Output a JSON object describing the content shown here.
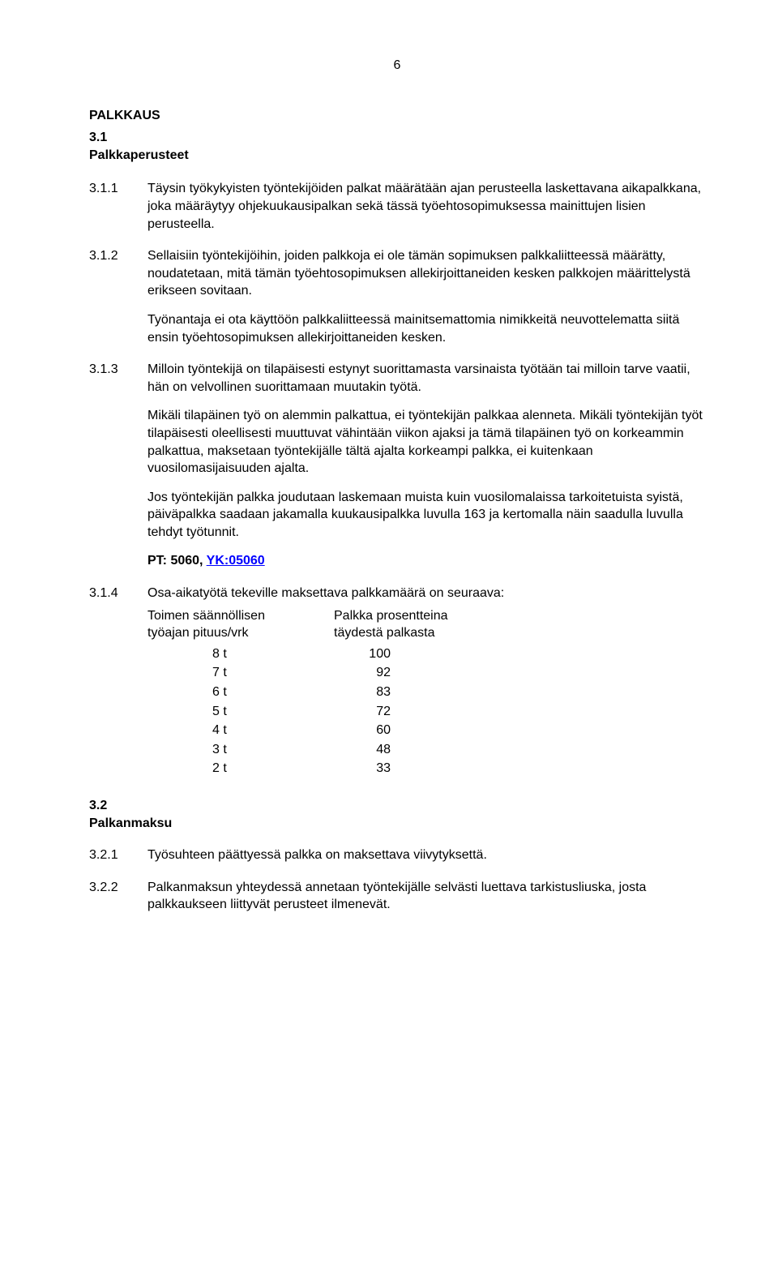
{
  "page_number": "6",
  "heading_main": "PALKKAUS",
  "heading_sub_num": "3.1",
  "heading_sub_label": "Palkkaperusteet",
  "clauses": {
    "c311_num": "3.1.1",
    "c311_text": "Täysin työkykyisten työntekijöiden palkat määrätään ajan perusteella laskettavana aikapalkkana, joka määräytyy ohjekuukausipalkan sekä tässä työehtosopimuksessa mainittujen lisien perusteella.",
    "c312_num": "3.1.2",
    "c312_p1": "Sellaisiin työntekijöihin, joiden palkkoja ei ole tämän sopimuksen palkkaliitteessä määrätty, noudatetaan, mitä tämän työehtosopimuksen allekirjoittaneiden kesken palkkojen määrittelystä erikseen sovitaan.",
    "c312_p2": "Työnantaja ei ota käyttöön palkkaliitteessä mainitsemattomia nimikkeitä neuvottelematta siitä ensin työehtosopimuksen allekirjoittaneiden kesken.",
    "c313_num": "3.1.3",
    "c313_p1": "Milloin työntekijä on tilapäisesti estynyt suorittamasta varsinaista työtään tai milloin tarve vaatii, hän on velvollinen suorittamaan muutakin työtä.",
    "c313_p2": "Mikäli tilapäinen työ on alemmin palkattua, ei työntekijän palkkaa alenneta. Mikäli työntekijän työt tilapäisesti oleellisesti muuttuvat vähintään viikon ajaksi ja tämä tilapäinen työ on korkeammin palkattua, maksetaan työntekijälle tältä ajalta korkeampi palkka, ei kuitenkaan vuosilomаsijaisuuden ajalta.",
    "c313_p3": "Jos työntekijän palkka joudutaan laskemaan muista kuin vuosilomalaissa tarkoitetuista syistä, päiväpalkka saadaan jakamalla kuukausipalkka luvulla 163 ja kertomalla näin saadulla luvulla tehdyt työtunnit.",
    "pt_label": "PT: 5060, ",
    "yk_label": "YK:05060",
    "c314_num": "3.1.4",
    "c314_intro": "Osa-aikatyötä tekeville maksettava palkkamäärä on seuraava:",
    "table_head_col1_l1": "Toimen säännöllisen",
    "table_head_col1_l2": "työajan pituus/vrk",
    "table_head_col2_l1": "Palkka prosentteina",
    "table_head_col2_l2": "täydestä palkasta",
    "rows": [
      {
        "h": "8 t",
        "p": "100"
      },
      {
        "h": "7 t",
        "p": "92"
      },
      {
        "h": "6 t",
        "p": "83"
      },
      {
        "h": "5 t",
        "p": "72"
      },
      {
        "h": "4 t",
        "p": "60"
      },
      {
        "h": "3 t",
        "p": "48"
      },
      {
        "h": "2 t",
        "p": "33"
      }
    ]
  },
  "heading2_num": "3.2",
  "heading2_label": "Palkanmaksu",
  "c321_num": "3.2.1",
  "c321_text": "Työsuhteen päättyessä palkka on maksettava  viivytyksettä.",
  "c322_num": "3.2.2",
  "c322_text": "Palkanmaksun yhteydessä annetaan työntekijälle selvästi luettava tarkistusliuska, josta palkkaukseen liittyvät perusteet ilmenevät."
}
